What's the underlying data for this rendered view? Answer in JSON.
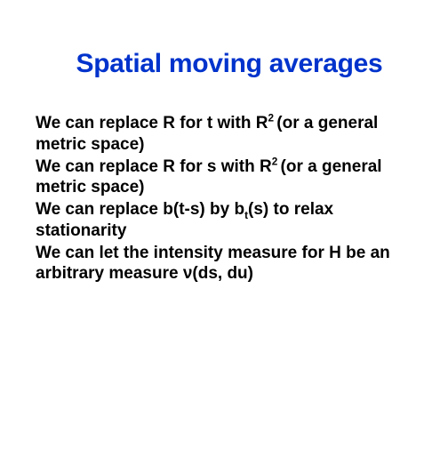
{
  "title": "Spatial moving averages",
  "paragraphs": {
    "p1a": "We can replace R for t with R",
    "p1sup": "2 ",
    "p1b": "(or a general metric space)",
    "p2a": "We can replace R for s with R",
    "p2sup": "2 ",
    "p2b": "(or a general metric space)",
    "p3a": "We can replace b(t-s) by b",
    "p3sub": "t",
    "p3b": "(s) to relax stationarity",
    "p4": "We can let the intensity measure for H be an arbitrary measure ν(ds, du)"
  },
  "colors": {
    "title": "#0033cc",
    "body": "#000000",
    "background": "#ffffff"
  },
  "fonts": {
    "title_size": 30,
    "body_size": 19,
    "weight": "bold",
    "family": "Arial"
  }
}
